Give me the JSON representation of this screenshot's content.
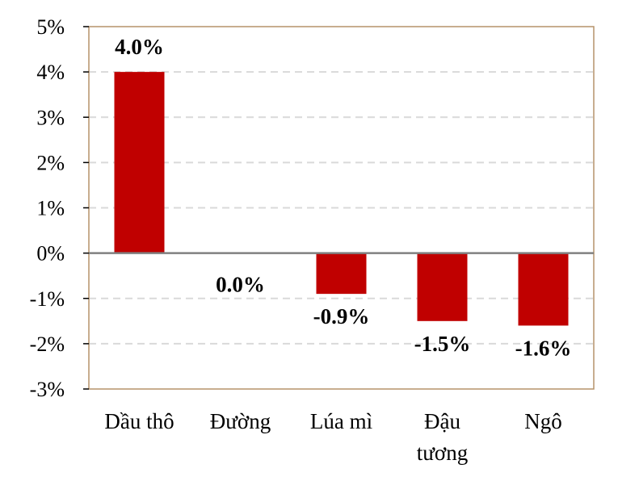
{
  "chart_data": {
    "type": "bar",
    "categories": [
      "Dầu thô",
      "Đường",
      "Lúa mì",
      "Đậu tương",
      "Ngô"
    ],
    "category_lines": [
      [
        "Dầu thô"
      ],
      [
        "Đường"
      ],
      [
        "Lúa mì"
      ],
      [
        "Đậu",
        "tương"
      ],
      [
        "Ngô"
      ]
    ],
    "values": [
      4.0,
      0.0,
      -0.9,
      -1.5,
      -1.6
    ],
    "data_labels": [
      "4.0%",
      "0.0%",
      "-0.9%",
      "-1.5%",
      "-1.6%"
    ],
    "ylim": [
      -3,
      5
    ],
    "yticks": [
      5,
      4,
      3,
      2,
      1,
      0,
      -1,
      -2,
      -3
    ],
    "ytick_labels": [
      "5%",
      "4%",
      "3%",
      "2%",
      "1%",
      "0%",
      "-1%",
      "-2%",
      "-3%"
    ],
    "grid": true,
    "title": "",
    "xlabel": "",
    "ylabel": "",
    "colors": {
      "bar": "#c00000",
      "grid": "#d9d9d9",
      "frame": "#b5926a",
      "zero_line": "#808080"
    }
  }
}
